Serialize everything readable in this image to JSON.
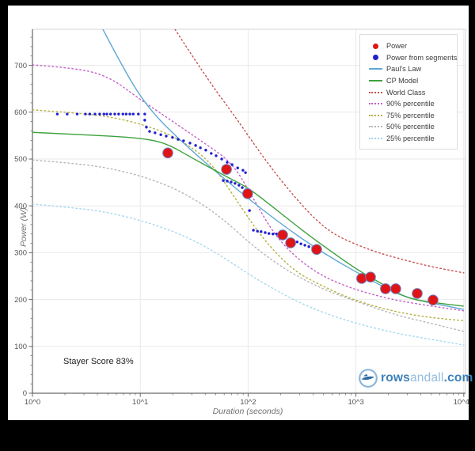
{
  "branding": {
    "prefix": "rows",
    "middle": "andall",
    "suffix": ".com"
  },
  "chart_data": {
    "type": "line",
    "title": "",
    "xlabel": "Duration (seconds)",
    "ylabel": "Power (W)",
    "x_scale": "log",
    "x_range": [
      1,
      10000
    ],
    "y_range": [
      0,
      777
    ],
    "grid": true,
    "legend_position": "top-right",
    "annotation": "Stayer Score 83%",
    "x_tick_labels": [
      "10^0",
      "10^1",
      "10^2",
      "10^3",
      "10^4"
    ],
    "x_tick_values": [
      1,
      10,
      100,
      1000,
      10000
    ],
    "y_tick_values": [
      0,
      100,
      200,
      300,
      400,
      500,
      600,
      700
    ],
    "series": [
      {
        "name": "Power",
        "slug": "power",
        "kind": "scatter-big",
        "color": "#e01414",
        "points": [
          [
            18,
            513
          ],
          [
            63,
            478
          ],
          [
            99,
            426
          ],
          [
            209,
            338
          ],
          [
            248,
            321
          ],
          [
            432,
            307
          ],
          [
            1130,
            245
          ],
          [
            1365,
            248
          ],
          [
            1880,
            223
          ],
          [
            2340,
            223
          ],
          [
            3700,
            213
          ],
          [
            5190,
            199
          ]
        ]
      },
      {
        "name": "Power from segments",
        "slug": "power-segments",
        "kind": "scatter-small",
        "color": "#1f1fd0",
        "points": [
          [
            1.7,
            596
          ],
          [
            2.1,
            596
          ],
          [
            2.6,
            596
          ],
          [
            3.1,
            596
          ],
          [
            3.4,
            596
          ],
          [
            3.8,
            596
          ],
          [
            4.2,
            596
          ],
          [
            4.6,
            596
          ],
          [
            4.9,
            596
          ],
          [
            5.3,
            596
          ],
          [
            5.8,
            596
          ],
          [
            6.3,
            596
          ],
          [
            6.9,
            596
          ],
          [
            7.4,
            596
          ],
          [
            8.0,
            596
          ],
          [
            8.6,
            596
          ],
          [
            9.6,
            596
          ],
          [
            11.0,
            596
          ],
          [
            11.0,
            583
          ],
          [
            11.4,
            568
          ],
          [
            12.2,
            559
          ],
          [
            13.7,
            556
          ],
          [
            15.5,
            552
          ],
          [
            17.4,
            549
          ],
          [
            19.9,
            546
          ],
          [
            22.4,
            542
          ],
          [
            25.2,
            539
          ],
          [
            28.9,
            534
          ],
          [
            32.6,
            529
          ],
          [
            36.1,
            524
          ],
          [
            40.5,
            519
          ],
          [
            45.5,
            512
          ],
          [
            50.5,
            507
          ],
          [
            56.9,
            500
          ],
          [
            64,
            493
          ],
          [
            71,
            488
          ],
          [
            80,
            481
          ],
          [
            89.6,
            476
          ],
          [
            94.6,
            471
          ],
          [
            58.9,
            454
          ],
          [
            64,
            453
          ],
          [
            69.6,
            451
          ],
          [
            75.6,
            448
          ],
          [
            82.2,
            444
          ],
          [
            88.3,
            439
          ],
          [
            94.6,
            434
          ],
          [
            103,
            390
          ],
          [
            112,
            348
          ],
          [
            122,
            346
          ],
          [
            132,
            345
          ],
          [
            144,
            343
          ],
          [
            156,
            341
          ],
          [
            170,
            340
          ],
          [
            184,
            340
          ],
          [
            204,
            338
          ],
          [
            222,
            333
          ],
          [
            241,
            329
          ],
          [
            262,
            326
          ],
          [
            285,
            323
          ],
          [
            309,
            319
          ],
          [
            336,
            316
          ],
          [
            366,
            313
          ],
          [
            398,
            311
          ]
        ]
      },
      {
        "name": "Paul's Law",
        "slug": "pauls-law",
        "kind": "line",
        "color": "#5fa8d3",
        "points": [
          [
            4.5,
            777
          ],
          [
            7.5,
            679
          ],
          [
            12.4,
            603
          ],
          [
            24.4,
            536
          ],
          [
            67,
            448
          ],
          [
            186,
            367
          ],
          [
            494,
            299
          ],
          [
            1535,
            235
          ],
          [
            2920,
            203
          ],
          [
            10000,
            179
          ]
        ]
      },
      {
        "name": "CP Model",
        "slug": "cp-model",
        "kind": "line",
        "color": "#3da23d",
        "points": [
          [
            1,
            557
          ],
          [
            2.7,
            552
          ],
          [
            5.3,
            549
          ],
          [
            10.5,
            544
          ],
          [
            17.4,
            534
          ],
          [
            31.5,
            500
          ],
          [
            67,
            459
          ],
          [
            100,
            439
          ],
          [
            171,
            397
          ],
          [
            309,
            350
          ],
          [
            511,
            313
          ],
          [
            1005,
            265
          ],
          [
            1675,
            236
          ],
          [
            2920,
            203
          ],
          [
            5000,
            194
          ],
          [
            10000,
            186
          ]
        ]
      },
      {
        "name": "World Class",
        "slug": "world-class",
        "kind": "dotted",
        "color": "#c75050",
        "points": [
          [
            21,
            777
          ],
          [
            40,
            677
          ],
          [
            80,
            583
          ],
          [
            108,
            539
          ],
          [
            165,
            480
          ],
          [
            274,
            417
          ],
          [
            455,
            363
          ],
          [
            694,
            333
          ],
          [
            1410,
            304
          ],
          [
            2550,
            287
          ],
          [
            5000,
            270
          ],
          [
            10000,
            257
          ]
        ]
      },
      {
        "name": "90% percentile",
        "slug": "p90",
        "kind": "dotted",
        "color": "#c45fc8",
        "points": [
          [
            1,
            701
          ],
          [
            2.7,
            694
          ],
          [
            5.3,
            674
          ],
          [
            9.3,
            632
          ],
          [
            18.4,
            586
          ],
          [
            36,
            540
          ],
          [
            71,
            493
          ],
          [
            108,
            422
          ],
          [
            180,
            333
          ],
          [
            352,
            269
          ],
          [
            721,
            231
          ],
          [
            1990,
            201
          ],
          [
            5000,
            186
          ],
          [
            10000,
            176
          ]
        ]
      },
      {
        "name": "75% percentile",
        "slug": "p75",
        "kind": "dotted",
        "color": "#b3b13f",
        "points": [
          [
            1,
            605
          ],
          [
            2.7,
            598
          ],
          [
            5.3,
            590
          ],
          [
            10.5,
            574
          ],
          [
            18.9,
            552
          ],
          [
            31.5,
            522
          ],
          [
            48,
            485
          ],
          [
            73.5,
            421
          ],
          [
            122,
            346
          ],
          [
            186,
            296
          ],
          [
            283,
            258
          ],
          [
            432,
            235
          ],
          [
            855,
            203
          ],
          [
            1990,
            177
          ],
          [
            4590,
            162
          ],
          [
            10000,
            155
          ]
        ]
      },
      {
        "name": "50% percentile",
        "slug": "p50",
        "kind": "dotted",
        "color": "#b5b5b5",
        "points": [
          [
            1,
            498
          ],
          [
            2.7,
            490
          ],
          [
            5.3,
            480
          ],
          [
            10.5,
            463
          ],
          [
            20.6,
            438
          ],
          [
            37,
            405
          ],
          [
            62,
            367
          ],
          [
            103,
            321
          ],
          [
            171,
            282
          ],
          [
            283,
            250
          ],
          [
            511,
            221
          ],
          [
            1005,
            196
          ],
          [
            2340,
            167
          ],
          [
            5000,
            149
          ],
          [
            10000,
            132
          ]
        ]
      },
      {
        "name": "25% percentile",
        "slug": "p25",
        "kind": "dotted",
        "color": "#a6d7f0",
        "points": [
          [
            1,
            404
          ],
          [
            2.7,
            395
          ],
          [
            5.3,
            385
          ],
          [
            10.5,
            368
          ],
          [
            20.6,
            345
          ],
          [
            37,
            318
          ],
          [
            62,
            287
          ],
          [
            103,
            253
          ],
          [
            171,
            223
          ],
          [
            283,
            196
          ],
          [
            511,
            171
          ],
          [
            1005,
            149
          ],
          [
            2340,
            128
          ],
          [
            5000,
            115
          ],
          [
            10000,
            103
          ]
        ]
      }
    ]
  },
  "legend": {
    "items": [
      {
        "label": "Power",
        "slug": "power",
        "marker": "dot",
        "color": "#e01414"
      },
      {
        "label": "Power from segments",
        "slug": "power-segments",
        "marker": "dot",
        "color": "#1f1fd0"
      },
      {
        "label": "Paul's Law",
        "slug": "pauls-law",
        "marker": "line",
        "color": "#5fa8d3"
      },
      {
        "label": "CP Model",
        "slug": "cp-model",
        "marker": "line",
        "color": "#3da23d"
      },
      {
        "label": "World Class",
        "slug": "world-class",
        "marker": "dotted",
        "color": "#c75050"
      },
      {
        "label": "90% percentile",
        "slug": "p90",
        "marker": "dotted",
        "color": "#c45fc8"
      },
      {
        "label": "75% percentile",
        "slug": "p75",
        "marker": "dotted",
        "color": "#b3b13f"
      },
      {
        "label": "50% percentile",
        "slug": "p50",
        "marker": "dotted",
        "color": "#b5b5b5"
      },
      {
        "label": "25% percentile",
        "slug": "p25",
        "marker": "dotted",
        "color": "#a6d7f0"
      }
    ]
  }
}
